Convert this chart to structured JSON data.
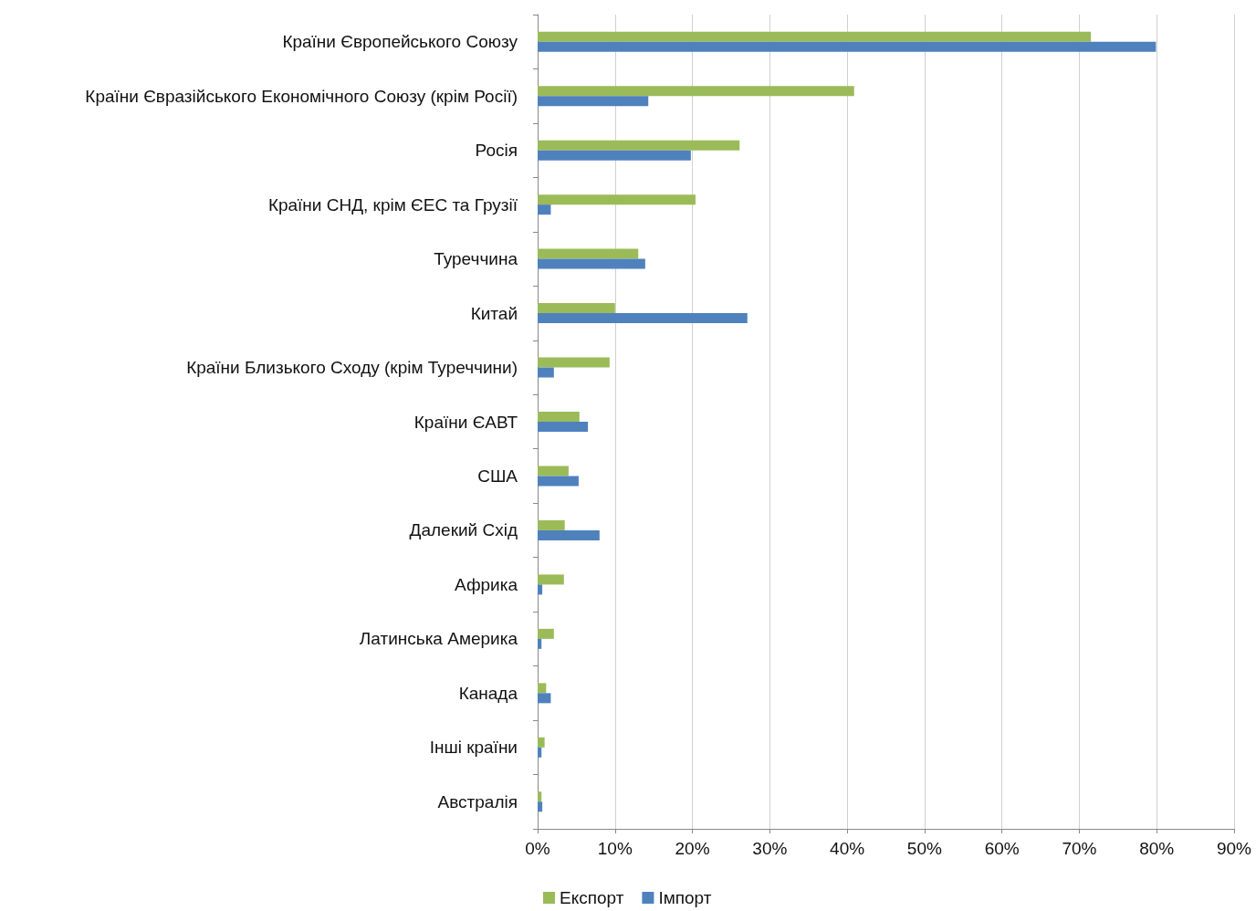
{
  "chart_data": {
    "type": "bar",
    "orientation": "horizontal",
    "categories": [
      "Країни Європейського Союзу",
      "Країни Євразійського Економічного Союзу (крім Росії)",
      "Росія",
      "Країни СНД, крім ЄЕС та Грузії",
      "Туреччина",
      "Китай",
      "Країни Близького Сходу (крім Туреччини)",
      "Країни ЄАВТ",
      "США",
      "Далекий Схід",
      "Африка",
      "Латинська Америка",
      "Канада",
      "Інші країни",
      "Австралія"
    ],
    "series": [
      {
        "name": "Експорт",
        "color": "#9bbb59",
        "values": [
          71.5,
          40.9,
          26.1,
          20.4,
          13.0,
          10.0,
          9.3,
          5.4,
          4.0,
          3.5,
          3.4,
          2.1,
          1.1,
          0.9,
          0.5
        ]
      },
      {
        "name": "Імпорт",
        "color": "#4f81bd",
        "values": [
          79.9,
          14.3,
          19.8,
          1.7,
          13.9,
          27.1,
          2.1,
          6.5,
          5.3,
          8.0,
          0.6,
          0.5,
          1.7,
          0.5,
          0.6
        ]
      }
    ],
    "xlim": [
      0,
      90
    ],
    "xticks": [
      {
        "value": 0,
        "label": "0%"
      },
      {
        "value": 10,
        "label": "10%"
      },
      {
        "value": 20,
        "label": "20%"
      },
      {
        "value": 30,
        "label": "30%"
      },
      {
        "value": 40,
        "label": "40%"
      },
      {
        "value": 50,
        "label": "50%"
      },
      {
        "value": 60,
        "label": "60%"
      },
      {
        "value": 70,
        "label": "70%"
      },
      {
        "value": 80,
        "label": "80%"
      },
      {
        "value": 90,
        "label": "90%"
      }
    ],
    "grid": "x",
    "legend": "bottom"
  }
}
